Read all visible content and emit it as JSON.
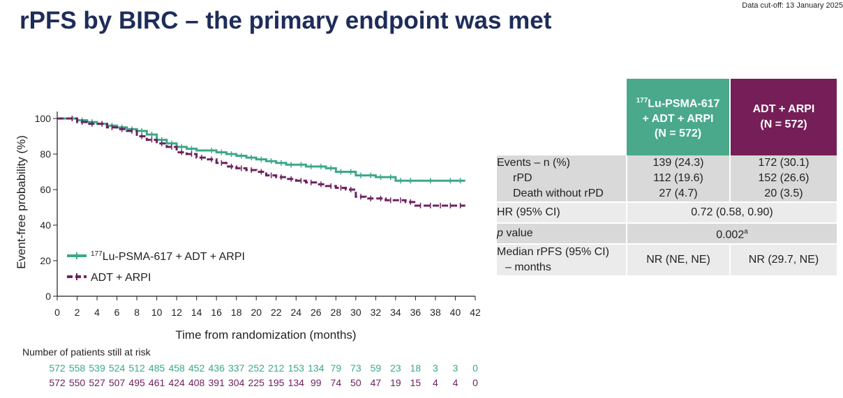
{
  "header": {
    "title": "rPFS by BIRC – the primary endpoint was met",
    "cutoff": "Data cut-off: 13 January 2025"
  },
  "chart_data": {
    "type": "line",
    "title": "",
    "xlabel": "Time from randomization (months)",
    "ylabel": "Event-free probability (%)",
    "xlim": [
      0,
      42
    ],
    "ylim": [
      0,
      100
    ],
    "x_ticks": [
      0,
      2,
      4,
      6,
      8,
      10,
      12,
      14,
      16,
      18,
      20,
      22,
      24,
      26,
      28,
      30,
      32,
      34,
      36,
      38,
      40,
      42
    ],
    "y_ticks": [
      0,
      20,
      40,
      60,
      80,
      100
    ],
    "grid": false,
    "legend_position": "bottom-left",
    "series": [
      {
        "name_sup": "177",
        "name_main": "Lu-PSMA-617 + ADT + ARPI",
        "color": "#3aa889",
        "style": "solid",
        "x": [
          0,
          2,
          3,
          4,
          5,
          6,
          7,
          8,
          9,
          10,
          11,
          12,
          13,
          14,
          16,
          17,
          18,
          19,
          20,
          21,
          22,
          23,
          24,
          25,
          26,
          27,
          28,
          29,
          30,
          31,
          32,
          33,
          34,
          35,
          36,
          38,
          40,
          41
        ],
        "y": [
          100,
          99,
          98,
          97,
          96,
          95,
          94,
          93,
          91,
          88,
          86,
          84,
          83,
          82,
          81,
          80,
          79,
          78,
          77,
          76,
          75,
          74,
          74,
          73,
          73,
          72,
          70,
          70,
          68,
          68,
          67,
          67,
          65,
          65,
          65,
          65,
          65,
          65
        ]
      },
      {
        "name": "ADT + ARPI",
        "color": "#6d2160",
        "style": "dashed",
        "x": [
          0,
          2,
          3,
          4,
          5,
          6,
          7,
          8,
          9,
          10,
          11,
          12,
          13,
          14,
          15,
          16,
          17,
          18,
          19,
          20,
          21,
          22,
          23,
          24,
          25,
          26,
          27,
          28,
          29,
          30,
          31,
          32,
          33,
          34,
          35,
          36,
          37,
          38,
          39,
          40,
          41
        ],
        "y": [
          100,
          98,
          97,
          97,
          95,
          94,
          93,
          90,
          88,
          86,
          84,
          81,
          80,
          78,
          77,
          75,
          73,
          72,
          71,
          70,
          68,
          67,
          66,
          65,
          64,
          63,
          62,
          61,
          60,
          56,
          55,
          55,
          54,
          54,
          53,
          51,
          51,
          51,
          51,
          51,
          51
        ]
      }
    ]
  },
  "risk_table": {
    "title": "Number of patients still at risk",
    "times": [
      0,
      2,
      4,
      6,
      8,
      10,
      12,
      14,
      16,
      18,
      20,
      22,
      24,
      26,
      28,
      30,
      32,
      34,
      36,
      38,
      40,
      42
    ],
    "lu": [
      "572",
      "558",
      "539",
      "524",
      "512",
      "485",
      "458",
      "452",
      "436",
      "337",
      "252",
      "212",
      "153",
      "134",
      "79",
      "73",
      "59",
      "23",
      "18",
      "3",
      "3",
      "0"
    ],
    "adt": [
      "572",
      "550",
      "527",
      "507",
      "495",
      "461",
      "424",
      "408",
      "391",
      "304",
      "225",
      "195",
      "134",
      "99",
      "74",
      "50",
      "47",
      "19",
      "15",
      "4",
      "4",
      "0"
    ]
  },
  "summary_table": {
    "col_lu_sup": "177",
    "col_lu_line1": "Lu-PSMA-617",
    "col_lu_line2": "+ ADT + ARPI",
    "col_lu_line3": "(N = 572)",
    "col_adt_line1": "ADT + ARPI",
    "col_adt_line2": "(N = 572)",
    "events_label": "Events – n (%)",
    "rpd_label": "rPD",
    "death_label": "Death without rPD",
    "events_lu": "139 (24.3)",
    "rpd_lu": "112 (19.6)",
    "death_lu": "27 (4.7)",
    "events_adt": "172 (30.1)",
    "rpd_adt": "152 (26.6)",
    "death_adt": "20 (3.5)",
    "hr_label": "HR (95% CI)",
    "hr_value": "0.72 (0.58, 0.90)",
    "p_label_italic": "p",
    "p_label_rest": " value",
    "p_value": "0.002",
    "p_value_sup": "a",
    "median_label_line1": "Median rPFS (95% CI)",
    "median_label_line2": "– months",
    "median_lu": "NR (NE, NE)",
    "median_adt": "NR (29.7, NE)"
  }
}
